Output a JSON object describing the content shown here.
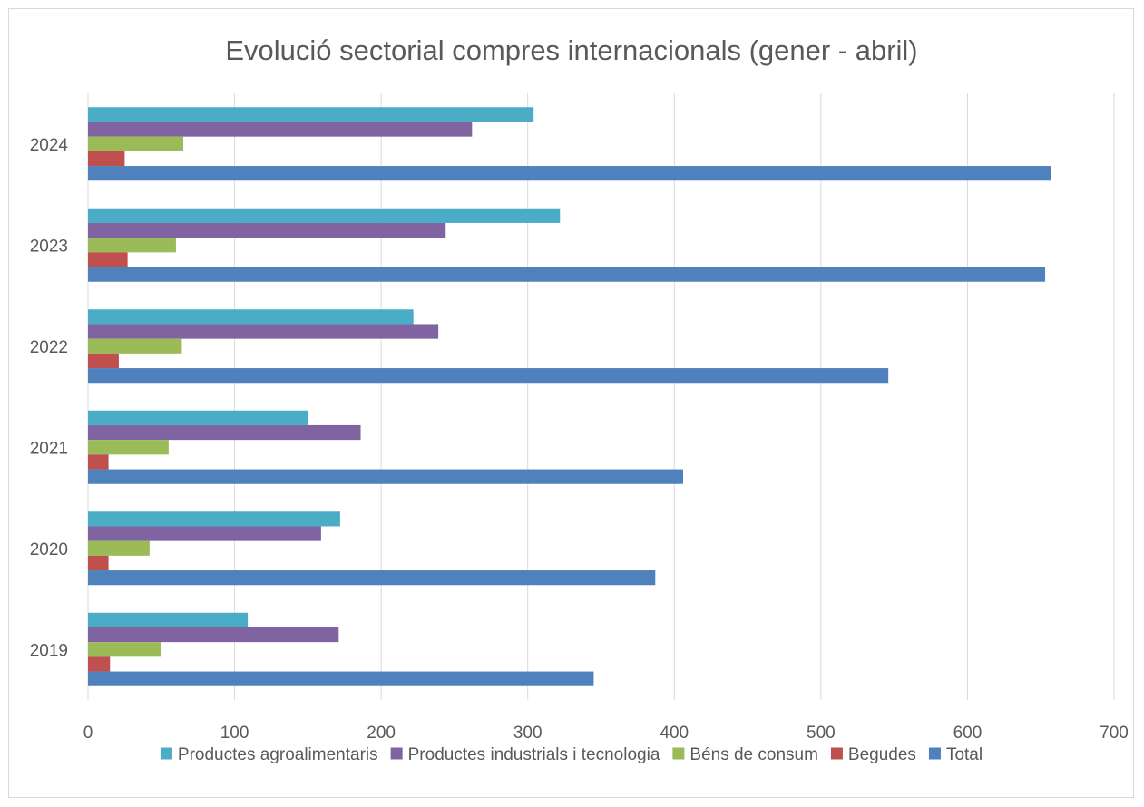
{
  "chart_data": {
    "type": "bar",
    "orientation": "horizontal",
    "title": "Evolució sectorial compres internacionals (gener - abril)",
    "xlabel": "",
    "ylabel": "",
    "xlim": [
      0,
      700
    ],
    "x_ticks": [
      "0",
      "100",
      "200",
      "300",
      "400",
      "500",
      "600",
      "700"
    ],
    "categories": [
      "2019",
      "2020",
      "2021",
      "2022",
      "2023",
      "2024"
    ],
    "grid": true,
    "legend_position": "bottom",
    "series": [
      {
        "name": "Productes agroalimentaris",
        "color": "#4bacc6",
        "values": [
          109,
          172,
          150,
          222,
          322,
          304
        ]
      },
      {
        "name": "Productes industrials i tecnologia",
        "color": "#8064a2",
        "values": [
          171,
          159,
          186,
          239,
          244,
          262
        ]
      },
      {
        "name": "Béns de consum",
        "color": "#9bbb59",
        "values": [
          50,
          42,
          55,
          64,
          60,
          65
        ]
      },
      {
        "name": "Begudes",
        "color": "#c0504d",
        "values": [
          15,
          14,
          14,
          21,
          27,
          25
        ]
      },
      {
        "name": "Total",
        "color": "#4f81bd",
        "values": [
          345,
          387,
          406,
          546,
          653,
          657
        ]
      }
    ]
  }
}
